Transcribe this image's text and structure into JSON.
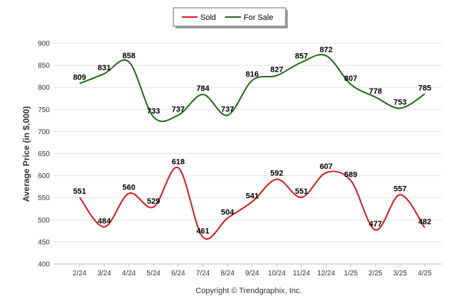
{
  "chart_data": {
    "type": "line",
    "categories": [
      "2/24",
      "3/24",
      "4/24",
      "5/24",
      "6/24",
      "7/24",
      "8/24",
      "9/24",
      "10/24",
      "11/24",
      "12/24",
      "1/25",
      "2/25",
      "3/25",
      "4/25"
    ],
    "series": [
      {
        "name": "Sold",
        "color": "#e0141e",
        "values": [
          551,
          484,
          560,
          529,
          618,
          461,
          504,
          541,
          592,
          551,
          607,
          589,
          477,
          557,
          482
        ]
      },
      {
        "name": "For Sale",
        "color": "#1a6b12",
        "values": [
          809,
          831,
          858,
          733,
          737,
          784,
          737,
          816,
          827,
          857,
          872,
          807,
          778,
          753,
          785
        ]
      }
    ],
    "ylabel": "Average Price (in $,000)",
    "ylim": [
      400,
      900
    ],
    "yticks": [
      400,
      450,
      500,
      550,
      600,
      650,
      700,
      750,
      800,
      850,
      900
    ],
    "grid": true,
    "legend": "top-center",
    "footer": "Copyright © Trendgraphix, Inc."
  }
}
